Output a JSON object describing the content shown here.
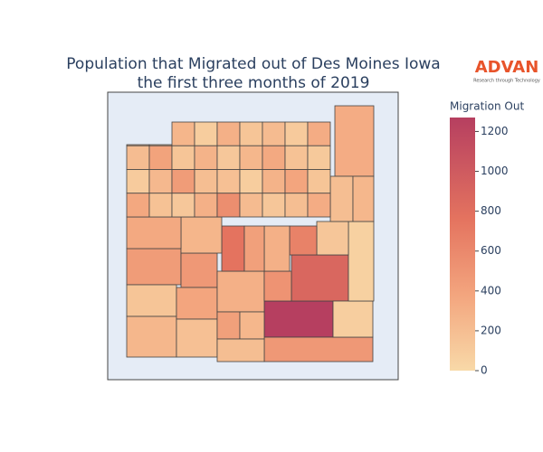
{
  "chart_data": {
    "type": "choropleth",
    "title": [
      "Population that Migrated out of Des Moines Iowa",
      "the first three months of 2019"
    ],
    "logo": {
      "name": "ADVAN",
      "tagline": "Research through Technology"
    },
    "colorscale": [
      [
        0,
        "#f8d9a8"
      ],
      [
        0.3,
        "#f3a57e"
      ],
      [
        0.6,
        "#e4735f"
      ],
      [
        1,
        "#b63f60"
      ]
    ],
    "colorbar": {
      "title": "Migration Out",
      "range": [
        0,
        1270
      ],
      "ticks": [
        0,
        200,
        400,
        600,
        800,
        1000,
        1200
      ]
    },
    "values": [
      330,
      1270,
      480,
      880,
      450,
      480,
      150,
      250,
      380,
      180,
      300,
      420,
      250,
      200,
      520,
      80,
      60,
      140,
      650,
      300,
      760,
      420,
      260,
      350,
      200,
      250,
      180,
      120,
      260,
      90,
      300,
      150,
      220,
      110,
      330,
      210,
      400,
      150,
      280,
      130,
      250,
      350,
      170,
      120,
      100,
      240,
      450,
      200,
      180,
      90,
      280,
      380,
      150,
      360,
      170,
      130,
      300,
      560,
      220,
      140,
      200,
      330
    ]
  }
}
